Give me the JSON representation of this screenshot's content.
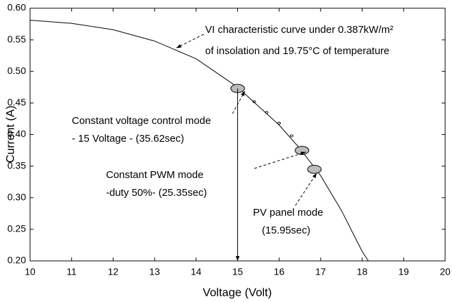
{
  "chart_data": {
    "type": "line",
    "xlabel": "Voltage (Volt)",
    "ylabel": "Current (A)",
    "xlim": [
      10,
      20
    ],
    "ylim": [
      0.2,
      0.6
    ],
    "xticks": [
      10,
      11,
      12,
      13,
      14,
      15,
      16,
      17,
      18,
      19,
      20
    ],
    "yticks": [
      {
        "value": 0.2,
        "label": "0.20"
      },
      {
        "value": 0.25,
        "label": "0.25"
      },
      {
        "value": 0.3,
        "label": "0.30"
      },
      {
        "value": 0.35,
        "label": "0.35"
      },
      {
        "value": 0.4,
        "label": "0.40"
      },
      {
        "value": 0.45,
        "label": "0.45"
      },
      {
        "value": 0.5,
        "label": "0.50"
      },
      {
        "value": 0.55,
        "label": "0.55"
      },
      {
        "value": 0.6,
        "label": "0.60"
      }
    ],
    "series": [
      {
        "color": "#000000",
        "x": [
          10,
          11,
          12,
          13,
          14,
          15,
          16,
          16.5,
          17,
          17.5,
          18,
          18.15
        ],
        "values": [
          0.581,
          0.576,
          0.566,
          0.548,
          0.52,
          0.475,
          0.415,
          0.378,
          0.335,
          0.28,
          0.215,
          0.2
        ]
      }
    ],
    "markers": {
      "color": "#000000",
      "x": [
        15,
        15.4,
        15.7,
        16.0,
        16.3,
        16.55,
        16.85
      ],
      "values": [
        0.473,
        0.452,
        0.435,
        0.418,
        0.398,
        0.375,
        0.345
      ]
    },
    "annotations": [
      {
        "lines": [
          "VI characteristic curve under 0.387kW/m²",
          "of insolation and 19.75°C of temperature"
        ]
      },
      {
        "lines": [
          "Constant voltage control mode",
          "- 15 Voltage -    (35.62sec)"
        ]
      },
      {
        "lines": [
          "Constant PWM mode",
          "-duty 50%-  (25.35sec)"
        ]
      },
      {
        "lines": [
          "PV panel mode",
          "(15.95sec)"
        ]
      }
    ]
  }
}
